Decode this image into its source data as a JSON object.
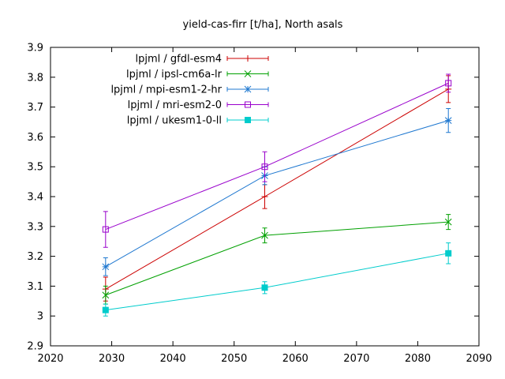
{
  "chart_data": {
    "type": "line",
    "title": "yield-cas-firr [t/ha], North asals",
    "xlabel": "",
    "ylabel": "",
    "xlim": [
      2020,
      2090
    ],
    "ylim": [
      2.9,
      3.9
    ],
    "xticks": [
      2020,
      2030,
      2040,
      2050,
      2060,
      2070,
      2080,
      2090
    ],
    "yticks": [
      2.9,
      3,
      3.1,
      3.2,
      3.3,
      3.4,
      3.5,
      3.6,
      3.7,
      3.8,
      3.9
    ],
    "xtick_labels": [
      "2020",
      "2030",
      "2040",
      "2050",
      "2060",
      "2070",
      "2080",
      "2090"
    ],
    "ytick_labels": [
      "2.9",
      "3",
      "3.1",
      "3.2",
      "3.3",
      "3.4",
      "3.5",
      "3.6",
      "3.7",
      "3.8",
      "3.9"
    ],
    "grid": false,
    "legend_position": "top-left",
    "x": [
      2029,
      2055,
      2085
    ],
    "series": [
      {
        "name": "lpjml / gfdl-esm4",
        "color": "#cc0000",
        "marker": "plus",
        "values": [
          3.09,
          3.4,
          3.76
        ],
        "errors": [
          0.04,
          0.04,
          0.045
        ]
      },
      {
        "name": "lpjml / ipsl-cm6a-lr",
        "color": "#00a000",
        "marker": "cross",
        "values": [
          3.07,
          3.27,
          3.315
        ],
        "errors": [
          0.03,
          0.025,
          0.025
        ]
      },
      {
        "name": "lpjml / mpi-esm1-2-hr",
        "color": "#1f78d0",
        "marker": "star",
        "values": [
          3.165,
          3.47,
          3.655
        ],
        "errors": [
          0.03,
          0.03,
          0.04
        ]
      },
      {
        "name": "lpjml / mri-esm2-0",
        "color": "#9900cc",
        "marker": "square-open",
        "values": [
          3.29,
          3.5,
          3.78
        ],
        "errors": [
          0.06,
          0.05,
          0.03
        ]
      },
      {
        "name": "lpjml / ukesm1-0-ll",
        "color": "#00cccc",
        "marker": "square-filled",
        "values": [
          3.02,
          3.095,
          3.21
        ],
        "errors": [
          0.02,
          0.02,
          0.035
        ]
      }
    ]
  }
}
